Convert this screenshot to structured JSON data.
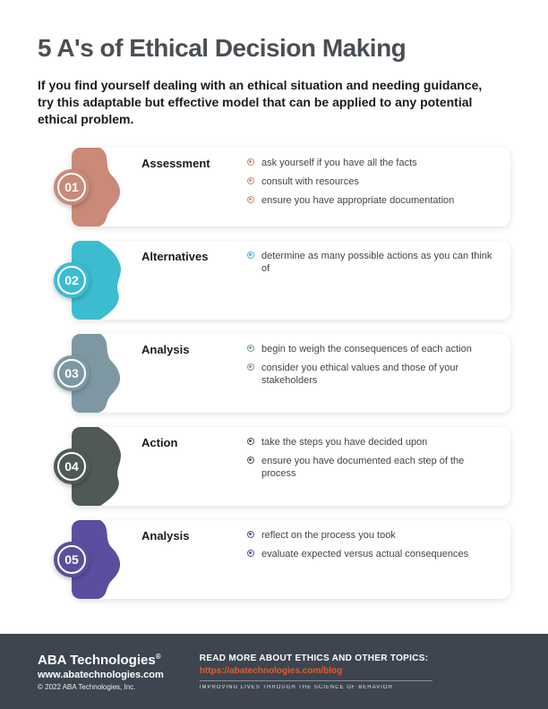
{
  "title": "5 A's of Ethical Decision Making",
  "intro": "If you find yourself dealing with an ethical situation and needing guidance, try this adaptable but effective model that can be applied to any potential ethical problem.",
  "palette": {
    "title_color": "#4a4f55",
    "text_color": "#1a1a1a",
    "card_bg": "#ffffff",
    "footer_bg": "#3c4550",
    "footer_text": "#ffffff",
    "link_color": "#e85a2a"
  },
  "steps": [
    {
      "num": "01",
      "label": "Assessment",
      "color": "#c98a78",
      "bullets": [
        "ask yourself if you have all the facts",
        "consult with resources",
        "ensure you have appropriate documentation"
      ]
    },
    {
      "num": "02",
      "label": "Alternatives",
      "color": "#3cbcd1",
      "bullets": [
        "determine as many possible actions as you can think of"
      ]
    },
    {
      "num": "03",
      "label": "Analysis",
      "color": "#7e98a3",
      "bullets": [
        "begin to weigh the consequences of each action",
        "consider you ethical values and those of your stakeholders"
      ]
    },
    {
      "num": "04",
      "label": "Action",
      "color": "#4f5a57",
      "bullets": [
        "take the steps you have decided upon",
        "ensure you have documented each step of the process"
      ]
    },
    {
      "num": "05",
      "label": "Analysis",
      "color": "#5a4f9e",
      "bullets": [
        "reflect on the process you took",
        "evaluate expected versus actual consequences"
      ]
    }
  ],
  "footer": {
    "brand": "ABA Technologies",
    "site": "www.abatechnologies.com",
    "copyright": "© 2022 ABA Technologies, Inc.",
    "read_more": "READ MORE ABOUT ETHICS AND OTHER TOPICS:",
    "blog_url": "https://abatechnologies.com/blog",
    "tagline": "IMPROVING LIVES THROUGH THE SCIENCE OF BEHAVIOR"
  }
}
